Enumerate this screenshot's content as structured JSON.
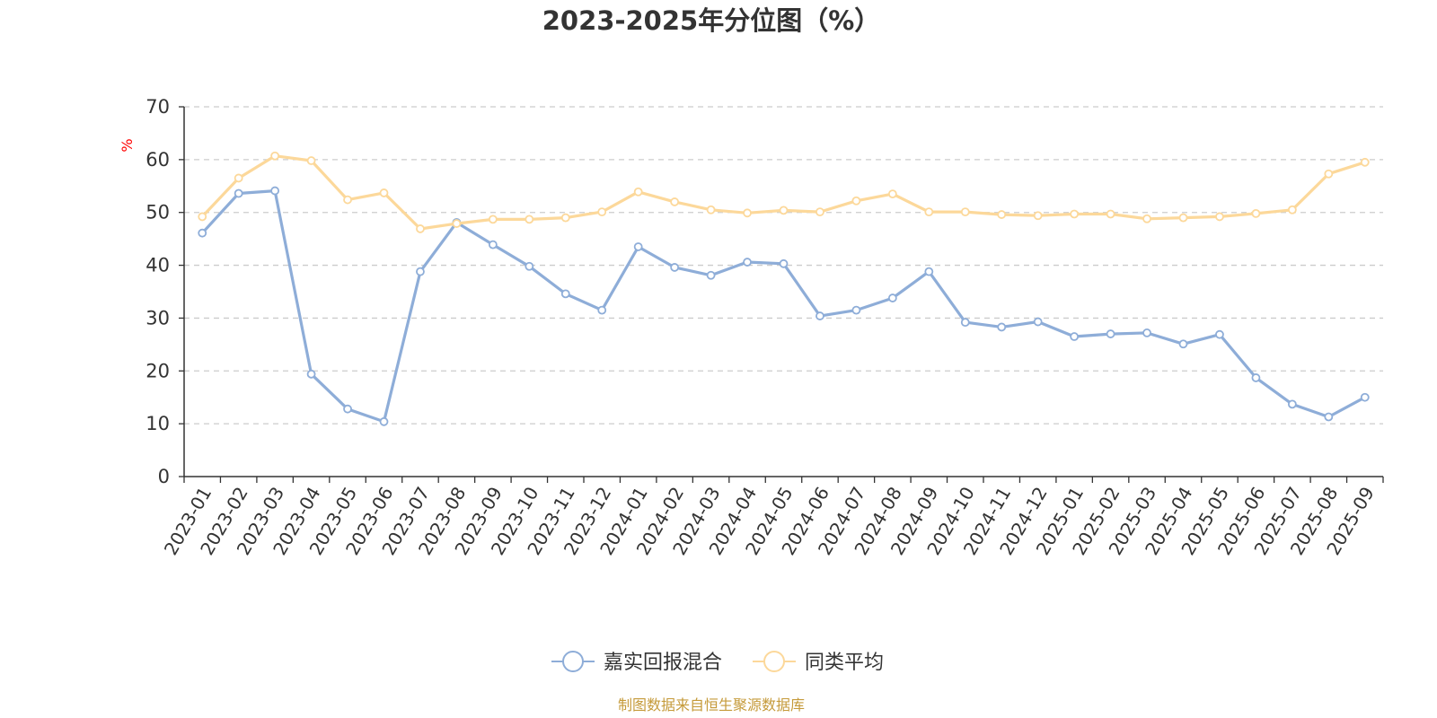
{
  "chart_data": {
    "type": "line",
    "title": "2023-2025年分位图（%）",
    "ylabel": "%",
    "xlabel": "",
    "ylim": [
      0,
      70
    ],
    "yticks": [
      0,
      10,
      20,
      30,
      40,
      50,
      60,
      70
    ],
    "grid": true,
    "legend_position": "bottom-center",
    "categories": [
      "2023-01",
      "2023-02",
      "2023-03",
      "2023-04",
      "2023-05",
      "2023-06",
      "2023-07",
      "2023-08",
      "2023-09",
      "2023-10",
      "2023-11",
      "2023-12",
      "2024-01",
      "2024-02",
      "2024-03",
      "2024-04",
      "2024-05",
      "2024-06",
      "2024-07",
      "2024-08",
      "2024-09",
      "2024-10",
      "2024-11",
      "2024-12",
      "2025-01",
      "2025-02",
      "2025-03",
      "2025-04",
      "2025-05",
      "2025-06",
      "2025-07",
      "2025-08",
      "2025-09"
    ],
    "series": [
      {
        "name": "嘉实回报混合",
        "color": "#8eadd8",
        "values": [
          46.1,
          53.6,
          54.1,
          19.4,
          12.8,
          10.4,
          38.8,
          48.1,
          43.9,
          39.8,
          34.6,
          31.5,
          43.5,
          39.6,
          38.1,
          40.6,
          40.3,
          30.4,
          31.5,
          33.8,
          38.8,
          29.2,
          28.3,
          29.3,
          26.5,
          27.0,
          27.2,
          25.1,
          26.9,
          18.7,
          13.7,
          11.3,
          15.0
        ]
      },
      {
        "name": "同类平均",
        "color": "#fcd89a",
        "values": [
          49.2,
          56.5,
          60.7,
          59.8,
          52.4,
          53.7,
          46.9,
          47.9,
          48.7,
          48.7,
          49.0,
          50.1,
          53.9,
          52.0,
          50.5,
          49.9,
          50.4,
          50.1,
          52.2,
          53.5,
          50.1,
          50.1,
          49.6,
          49.4,
          49.7,
          49.7,
          48.8,
          49.0,
          49.2,
          49.8,
          50.5,
          57.3,
          59.5
        ]
      }
    ],
    "source_text": "制图数据来自恒生聚源数据库",
    "source_color": "#c59a3a",
    "unit_color": "#ff0000",
    "axis_color": "#333333",
    "grid_color": "#cccccc"
  }
}
